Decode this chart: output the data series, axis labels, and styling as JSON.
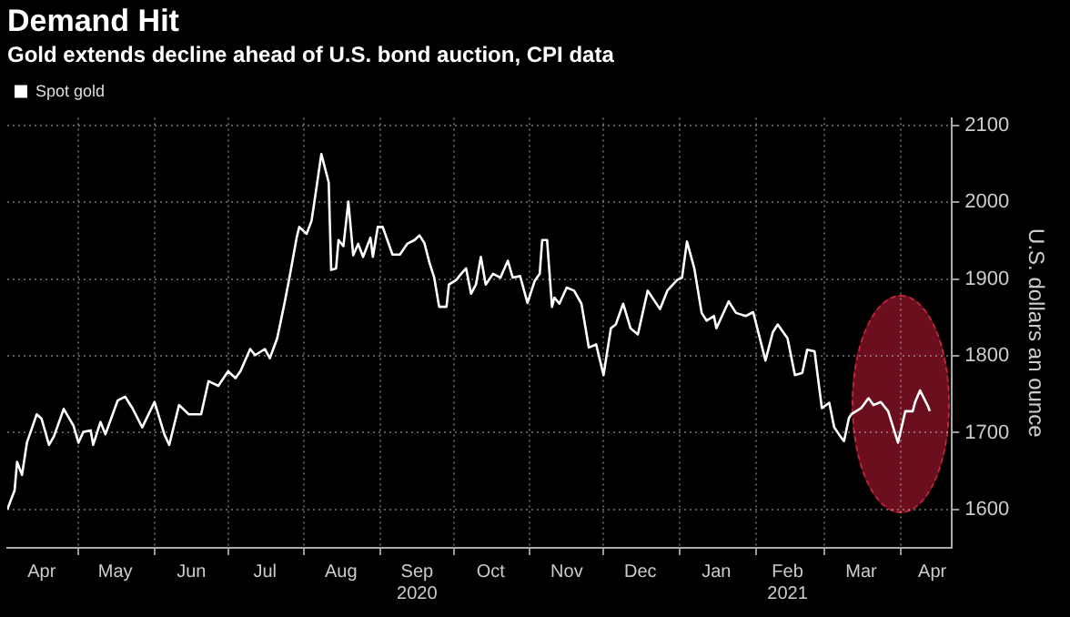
{
  "chart_data": {
    "type": "line",
    "title": "Demand Hit",
    "subtitle": "Gold extends decline ahead of U.S. bond auction, CPI data",
    "ylabel": "U.S. dollars an ounce",
    "x": [
      "2020-04-02",
      "2020-04-05",
      "2020-04-06",
      "2020-04-08",
      "2020-04-10",
      "2020-04-14",
      "2020-04-16",
      "2020-04-19",
      "2020-04-21",
      "2020-04-25",
      "2020-04-29",
      "2020-05-01",
      "2020-05-03",
      "2020-05-06",
      "2020-05-07",
      "2020-05-10",
      "2020-05-12",
      "2020-05-17",
      "2020-05-20",
      "2020-05-23",
      "2020-05-27",
      "2020-06-01",
      "2020-06-05",
      "2020-06-07",
      "2020-06-11",
      "2020-06-15",
      "2020-06-20",
      "2020-06-23",
      "2020-06-27",
      "2020-07-01",
      "2020-07-04",
      "2020-07-06",
      "2020-07-10",
      "2020-07-12",
      "2020-07-16",
      "2020-07-18",
      "2020-07-21",
      "2020-07-24",
      "2020-07-26",
      "2020-07-29",
      "2020-07-30",
      "2020-08-02",
      "2020-08-04",
      "2020-08-05",
      "2020-08-08",
      "2020-08-11",
      "2020-08-12",
      "2020-08-14",
      "2020-08-15",
      "2020-08-17",
      "2020-08-19",
      "2020-08-21",
      "2020-08-23",
      "2020-08-25",
      "2020-08-28",
      "2020-08-29",
      "2020-08-31",
      "2020-09-02",
      "2020-09-06",
      "2020-09-09",
      "2020-09-12",
      "2020-09-15",
      "2020-09-17",
      "2020-09-19",
      "2020-09-21",
      "2020-09-23",
      "2020-09-25",
      "2020-09-28",
      "2020-09-29",
      "2020-10-02",
      "2020-10-04",
      "2020-10-06",
      "2020-10-08",
      "2020-10-10",
      "2020-10-12",
      "2020-10-14",
      "2020-10-17",
      "2020-10-20",
      "2020-10-23",
      "2020-10-25",
      "2020-10-28",
      "2020-10-31",
      "2020-11-03",
      "2020-11-05",
      "2020-11-06",
      "2020-11-08",
      "2020-11-10",
      "2020-11-11",
      "2020-11-13",
      "2020-11-16",
      "2020-11-19",
      "2020-11-22",
      "2020-11-25",
      "2020-11-28",
      "2020-12-01",
      "2020-12-04",
      "2020-12-06",
      "2020-12-09",
      "2020-12-12",
      "2020-12-15",
      "2020-12-19",
      "2020-12-24",
      "2020-12-27",
      "2020-12-31",
      "2021-01-02",
      "2021-01-04",
      "2021-01-07",
      "2021-01-10",
      "2021-01-12",
      "2021-01-15",
      "2021-01-16",
      "2021-01-21",
      "2021-01-24",
      "2021-01-28",
      "2021-01-31",
      "2021-02-05",
      "2021-02-08",
      "2021-02-10",
      "2021-02-14",
      "2021-02-17",
      "2021-02-20",
      "2021-02-22",
      "2021-02-25",
      "2021-02-28",
      "2021-03-03",
      "2021-03-05",
      "2021-03-08",
      "2021-03-09",
      "2021-03-11",
      "2021-03-12",
      "2021-03-16",
      "2021-03-19",
      "2021-03-21",
      "2021-03-24",
      "2021-03-27",
      "2021-03-31",
      "2021-04-03",
      "2021-04-06",
      "2021-04-07",
      "2021-04-09",
      "2021-04-12",
      "2021-04-13"
    ],
    "series": [
      {
        "name": "Spot gold",
        "color": "#ffffff",
        "values": [
          1600,
          1625,
          1662,
          1645,
          1687,
          1724,
          1718,
          1684,
          1695,
          1731,
          1709,
          1687,
          1701,
          1703,
          1684,
          1714,
          1698,
          1742,
          1747,
          1732,
          1707,
          1740,
          1698,
          1684,
          1736,
          1724,
          1724,
          1767,
          1761,
          1780,
          1771,
          1780,
          1809,
          1801,
          1809,
          1797,
          1823,
          1869,
          1902,
          1955,
          1968,
          1959,
          1976,
          1997,
          2063,
          2026,
          1912,
          1914,
          1951,
          1943,
          2001,
          1931,
          1946,
          1929,
          1954,
          1929,
          1968,
          1968,
          1932,
          1932,
          1946,
          1951,
          1957,
          1947,
          1922,
          1902,
          1864,
          1864,
          1893,
          1899,
          1907,
          1914,
          1881,
          1893,
          1929,
          1893,
          1907,
          1902,
          1924,
          1902,
          1904,
          1869,
          1898,
          1907,
          1951,
          1951,
          1864,
          1876,
          1868,
          1889,
          1885,
          1868,
          1811,
          1815,
          1775,
          1836,
          1841,
          1868,
          1836,
          1828,
          1885,
          1861,
          1885,
          1899,
          1902,
          1949,
          1914,
          1856,
          1846,
          1852,
          1836,
          1871,
          1856,
          1852,
          1857,
          1794,
          1831,
          1841,
          1823,
          1775,
          1778,
          1808,
          1806,
          1732,
          1739,
          1707,
          1693,
          1689,
          1719,
          1724,
          1732,
          1745,
          1736,
          1740,
          1728,
          1687,
          1728,
          1728,
          1740,
          1755,
          1736,
          1728
        ]
      }
    ],
    "xlim": [
      "2020-04-02",
      "2021-04-22"
    ],
    "ylim": [
      1550,
      2110
    ],
    "xticks": [
      {
        "value": "2020-04-16",
        "label": "Apr"
      },
      {
        "value": "2020-05-01",
        "label": null
      },
      {
        "value": "2020-05-16",
        "label": "May"
      },
      {
        "value": "2020-06-01",
        "label": null
      },
      {
        "value": "2020-06-16",
        "label": "Jun"
      },
      {
        "value": "2020-07-01",
        "label": null
      },
      {
        "value": "2020-07-16",
        "label": "Jul"
      },
      {
        "value": "2020-08-01",
        "label": null
      },
      {
        "value": "2020-08-16",
        "label": "Aug"
      },
      {
        "value": "2020-09-01",
        "label": null
      },
      {
        "value": "2020-09-16",
        "label": "Sep\n2020"
      },
      {
        "value": "2020-10-01",
        "label": null
      },
      {
        "value": "2020-10-16",
        "label": "Oct"
      },
      {
        "value": "2020-11-01",
        "label": null
      },
      {
        "value": "2020-11-16",
        "label": "Nov"
      },
      {
        "value": "2020-12-01",
        "label": null
      },
      {
        "value": "2020-12-16",
        "label": "Dec"
      },
      {
        "value": "2021-01-01",
        "label": null
      },
      {
        "value": "2021-01-16",
        "label": "Jan"
      },
      {
        "value": "2021-02-01",
        "label": null
      },
      {
        "value": "2021-02-14",
        "label": "Feb\n2021"
      },
      {
        "value": "2021-03-01",
        "label": null
      },
      {
        "value": "2021-03-16",
        "label": "Mar"
      },
      {
        "value": "2021-04-01",
        "label": null
      },
      {
        "value": "2021-04-14",
        "label": "Apr"
      }
    ],
    "yticks": [
      1600,
      1700,
      1800,
      1900,
      2000,
      2100
    ],
    "grid": true,
    "legend": "top left",
    "marker": "none",
    "line_style": "solid"
  }
}
